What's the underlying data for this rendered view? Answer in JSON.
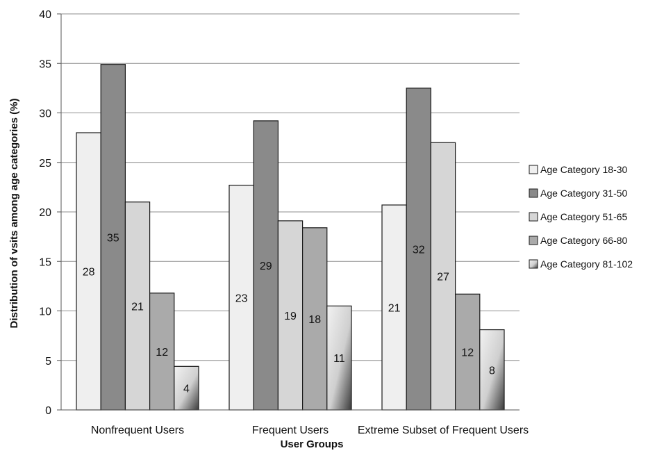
{
  "chart_data": {
    "type": "bar",
    "categories": [
      "Nonfrequent Users",
      "Frequent Users",
      "Extreme Subset of Frequent Users"
    ],
    "series": [
      {
        "name": "Age Category 18-30",
        "values": [
          28,
          22.7,
          20.7
        ],
        "labels": [
          "28",
          "23",
          "21"
        ],
        "color": "#efefef"
      },
      {
        "name": "Age Category 31-50",
        "values": [
          34.9,
          29.2,
          32.5
        ],
        "labels": [
          "35",
          "29",
          "32"
        ],
        "color": "#8a8a8a"
      },
      {
        "name": "Age Category 51-65",
        "values": [
          21,
          19.1,
          27
        ],
        "labels": [
          "21",
          "19",
          "27"
        ],
        "color": "#d6d6d6"
      },
      {
        "name": "Age Category 66-80",
        "values": [
          11.8,
          18.4,
          11.7
        ],
        "labels": [
          "12",
          "18",
          "12"
        ],
        "color": "#aaaaaa"
      },
      {
        "name": "Age Category 81-102",
        "values": [
          4.4,
          10.5,
          8.1
        ],
        "labels": [
          "4",
          "11",
          "8"
        ],
        "color": "#bdbdbd"
      }
    ],
    "xlabel": "User Groups",
    "ylabel": "Distribution of vsits among age categories (%)",
    "ylim": [
      0,
      40
    ],
    "yticks": [
      0,
      5,
      10,
      15,
      20,
      25,
      30,
      35,
      40
    ],
    "grid": true,
    "legend_position": "right"
  }
}
